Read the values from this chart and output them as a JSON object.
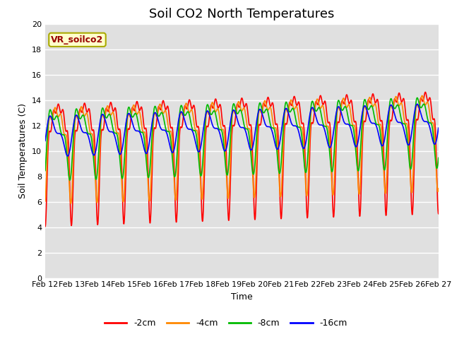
{
  "title": "Soil CO2 North Temperatures",
  "ylabel": "Soil Temperatures (C)",
  "xlabel": "Time",
  "ylim": [
    0,
    20
  ],
  "yticks": [
    0,
    2,
    4,
    6,
    8,
    10,
    12,
    14,
    16,
    18,
    20
  ],
  "xtick_labels": [
    "Feb 12",
    "Feb 13",
    "Feb 14",
    "Feb 15",
    "Feb 16",
    "Feb 17",
    "Feb 18",
    "Feb 19",
    "Feb 20",
    "Feb 21",
    "Feb 22",
    "Feb 23",
    "Feb 24",
    "Feb 25",
    "Feb 26",
    "Feb 27"
  ],
  "colors": {
    "-2cm": "#ff0000",
    "-4cm": "#ff8800",
    "-8cm": "#00bb00",
    "-16cm": "#0000ff"
  },
  "legend_label": "VR_soilco2",
  "legend_facecolor": "#ffffcc",
  "legend_edgecolor": "#aaaa00",
  "plot_bg_color": "#e0e0e0",
  "fig_bg_color": "#ffffff",
  "title_fontsize": 13,
  "axis_label_fontsize": 9,
  "tick_fontsize": 8,
  "line_width": 1.2,
  "base_mean": 11.5,
  "amp_2cm": 4.8,
  "amp_4cm": 3.8,
  "amp_8cm": 2.8,
  "amp_16cm": 1.6,
  "phase_2cm": 0.0,
  "phase_4cm": 0.35,
  "phase_8cm": 0.75,
  "phase_16cm": 1.35
}
